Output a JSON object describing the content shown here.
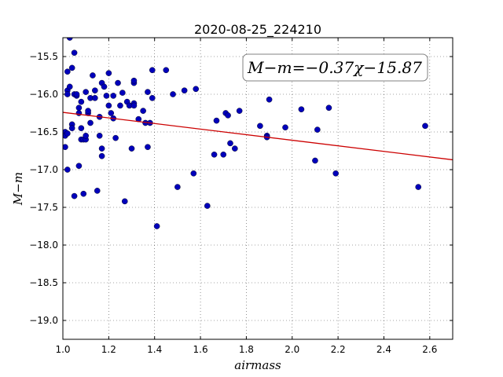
{
  "chart_data": {
    "type": "scatter",
    "title": "2020-08-25_224210",
    "xlabel": "airmass",
    "ylabel": "M−m",
    "xlim": [
      1.0,
      2.7
    ],
    "ylim": [
      -19.25,
      -15.25
    ],
    "y_inverted": true,
    "xticks": [
      1.0,
      1.2,
      1.4,
      1.6,
      1.8,
      2.0,
      2.2,
      2.4,
      2.6
    ],
    "xtick_labels": [
      "1.0",
      "1.2",
      "1.4",
      "1.6",
      "1.8",
      "2.0",
      "2.2",
      "2.4",
      "2.6"
    ],
    "yticks": [
      -15.5,
      -16.0,
      -16.5,
      -17.0,
      -17.5,
      -18.0,
      -18.5,
      -19.0
    ],
    "ytick_labels": [
      "−15.5",
      "−16.0",
      "−16.5",
      "−17.0",
      "−17.5",
      "−18.0",
      "−18.5",
      "−19.0"
    ],
    "grid": true,
    "annotation": "M−m=−0.37χ−15.87",
    "fit_line": {
      "slope": -0.37,
      "intercept": -15.87,
      "color": "#cc0000"
    },
    "marker_color": "#0000bb",
    "series": [
      {
        "points": [
          [
            1.01,
            -16.5
          ],
          [
            1.01,
            -16.7
          ],
          [
            1.01,
            -16.55
          ],
          [
            1.02,
            -15.7
          ],
          [
            1.02,
            -15.95
          ],
          [
            1.02,
            -16.0
          ],
          [
            1.02,
            -16.52
          ],
          [
            1.02,
            -17.0
          ],
          [
            1.03,
            -15.25
          ],
          [
            1.03,
            -15.9
          ],
          [
            1.04,
            -15.65
          ],
          [
            1.04,
            -16.4
          ],
          [
            1.04,
            -16.45
          ],
          [
            1.05,
            -17.35
          ],
          [
            1.05,
            -15.45
          ],
          [
            1.05,
            -16.0
          ],
          [
            1.06,
            -16.02
          ],
          [
            1.06,
            -16.0
          ],
          [
            1.07,
            -16.18
          ],
          [
            1.07,
            -16.25
          ],
          [
            1.07,
            -16.95
          ],
          [
            1.08,
            -16.1
          ],
          [
            1.08,
            -16.45
          ],
          [
            1.08,
            -16.6
          ],
          [
            1.09,
            -17.32
          ],
          [
            1.09,
            -16.6
          ],
          [
            1.1,
            -15.97
          ],
          [
            1.1,
            -16.6
          ],
          [
            1.1,
            -16.55
          ],
          [
            1.11,
            -16.25
          ],
          [
            1.11,
            -16.22
          ],
          [
            1.12,
            -16.38
          ],
          [
            1.12,
            -16.05
          ],
          [
            1.13,
            -15.75
          ],
          [
            1.14,
            -15.95
          ],
          [
            1.14,
            -16.05
          ],
          [
            1.15,
            -17.28
          ],
          [
            1.16,
            -16.55
          ],
          [
            1.16,
            -16.3
          ],
          [
            1.17,
            -15.85
          ],
          [
            1.17,
            -16.82
          ],
          [
            1.17,
            -16.72
          ],
          [
            1.18,
            -15.9
          ],
          [
            1.19,
            -16.02
          ],
          [
            1.2,
            -15.72
          ],
          [
            1.2,
            -16.15
          ],
          [
            1.21,
            -16.25
          ],
          [
            1.22,
            -16.32
          ],
          [
            1.22,
            -16.02
          ],
          [
            1.23,
            -16.58
          ],
          [
            1.24,
            -15.85
          ],
          [
            1.25,
            -16.15
          ],
          [
            1.26,
            -15.98
          ],
          [
            1.27,
            -17.42
          ],
          [
            1.28,
            -16.1
          ],
          [
            1.29,
            -16.15
          ],
          [
            1.3,
            -16.72
          ],
          [
            1.31,
            -15.85
          ],
          [
            1.31,
            -15.82
          ],
          [
            1.31,
            -16.12
          ],
          [
            1.31,
            -16.15
          ],
          [
            1.33,
            -16.33
          ],
          [
            1.35,
            -16.22
          ],
          [
            1.36,
            -16.38
          ],
          [
            1.37,
            -16.7
          ],
          [
            1.37,
            -15.97
          ],
          [
            1.38,
            -16.38
          ],
          [
            1.39,
            -15.68
          ],
          [
            1.39,
            -16.05
          ],
          [
            1.41,
            -17.75
          ],
          [
            1.45,
            -15.68
          ],
          [
            1.48,
            -16.0
          ],
          [
            1.5,
            -17.23
          ],
          [
            1.53,
            -15.95
          ],
          [
            1.57,
            -17.05
          ],
          [
            1.58,
            -15.93
          ],
          [
            1.63,
            -17.48
          ],
          [
            1.66,
            -16.8
          ],
          [
            1.67,
            -16.35
          ],
          [
            1.7,
            -16.8
          ],
          [
            1.71,
            -16.25
          ],
          [
            1.72,
            -16.28
          ],
          [
            1.73,
            -16.65
          ],
          [
            1.75,
            -16.72
          ],
          [
            1.77,
            -16.22
          ],
          [
            1.86,
            -16.42
          ],
          [
            1.89,
            -16.55
          ],
          [
            1.89,
            -16.57
          ],
          [
            1.9,
            -16.07
          ],
          [
            1.97,
            -16.44
          ],
          [
            2.04,
            -16.2
          ],
          [
            2.1,
            -16.88
          ],
          [
            2.11,
            -16.47
          ],
          [
            2.16,
            -16.18
          ],
          [
            2.19,
            -17.05
          ],
          [
            2.55,
            -17.23
          ],
          [
            2.58,
            -16.42
          ]
        ]
      }
    ]
  }
}
